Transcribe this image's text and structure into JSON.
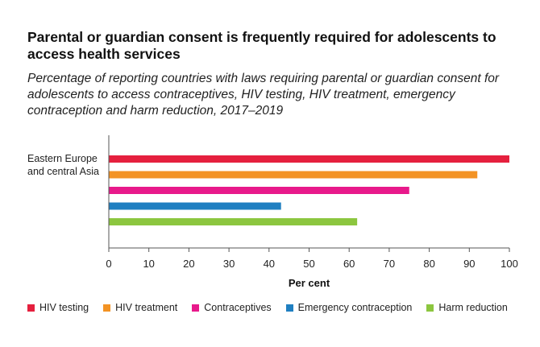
{
  "chart_data": {
    "type": "bar",
    "orientation": "horizontal",
    "title": "Parental or guardian consent is frequently required for adolescents to access health services",
    "subtitle": "Percentage of reporting countries with laws requiring parental or guardian consent for adolescents to access contraceptives, HIV testing, HIV treatment, emergency contraception and harm reduction, 2017–2019",
    "categories": [
      "Eastern Europe and central Asia"
    ],
    "series": [
      {
        "name": "HIV testing",
        "color": "#e5203e",
        "values": [
          100
        ]
      },
      {
        "name": "HIV treatment",
        "color": "#f39324",
        "values": [
          92
        ]
      },
      {
        "name": "Contraceptives",
        "color": "#e8198b",
        "values": [
          75
        ]
      },
      {
        "name": "Emergency contraception",
        "color": "#1f7fc1",
        "values": [
          43
        ]
      },
      {
        "name": "Harm reduction",
        "color": "#8cc63f",
        "values": [
          62
        ]
      }
    ],
    "xlabel": "Per cent",
    "ylabel": "",
    "xlim": [
      0,
      100
    ],
    "xticks": [
      "0",
      "10",
      "20",
      "30",
      "40",
      "50",
      "60",
      "70",
      "80",
      "90",
      "100"
    ],
    "grid": false,
    "legend_position": "bottom"
  }
}
